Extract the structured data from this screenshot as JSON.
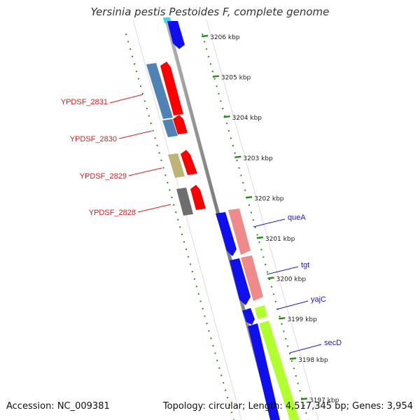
{
  "title": "Yersinia pestis Pestoides F, complete genome",
  "footer": {
    "accession_label": "Accession: NC_009381",
    "topology_label": "Topology: circular; Length: 4,517,345 bp; Genes: 3,954"
  },
  "ruler_unit": "kbp",
  "ruler": [
    {
      "pos": 3206,
      "label": "3206 kbp"
    },
    {
      "pos": 3205,
      "label": "3205 kbp"
    },
    {
      "pos": 3204,
      "label": "3204 kbp"
    },
    {
      "pos": 3203,
      "label": "3203 kbp"
    },
    {
      "pos": 3202,
      "label": "3202 kbp"
    },
    {
      "pos": 3201,
      "label": "3201 kbp"
    },
    {
      "pos": 3200,
      "label": "3200 kbp"
    },
    {
      "pos": 3199,
      "label": "3199 kbp"
    },
    {
      "pos": 3198,
      "label": "3198 kbp"
    },
    {
      "pos": 3197,
      "label": "3197 kbp"
    }
  ],
  "gene_labels_left": [
    "YPDSF_2831",
    "YPDSF_2830",
    "YPDSF_2829",
    "YPDSF_2828"
  ],
  "gene_labels_right": [
    "queA",
    "tgt",
    "yajC",
    "secD"
  ],
  "colors": {
    "backbone": "#8c8c8c",
    "dotted_track": "#2e8b1e",
    "left_label": "#d91e1e",
    "right_label": "#1a1ad0",
    "cds_blue": "#1010ee",
    "steelblue": "#4f83b5",
    "red": "#ff0000",
    "khaki": "#bdb476",
    "gray": "#6e6e6e",
    "salmon": "#ee8a8a",
    "lime": "#b2ff30",
    "cyan": "#33dddd"
  }
}
